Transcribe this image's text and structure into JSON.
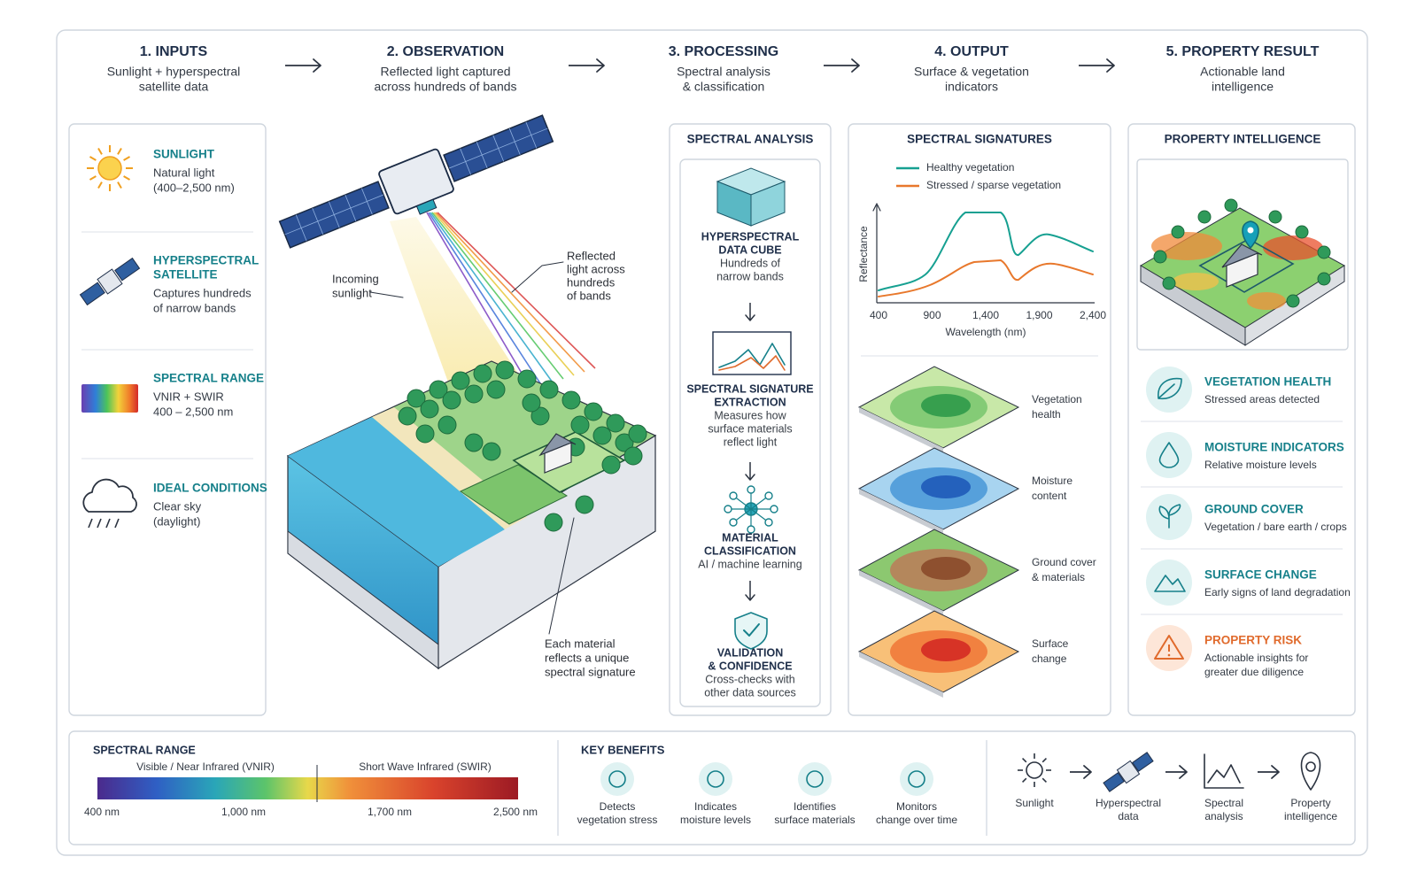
{
  "steps": [
    {
      "title": "1. INPUTS",
      "subtitle": [
        "Sunlight + hyperspectral",
        "satellite data"
      ]
    },
    {
      "title": "2. OBSERVATION",
      "subtitle": [
        "Reflected light captured",
        "across hundreds of bands"
      ]
    },
    {
      "title": "3. PROCESSING",
      "subtitle": [
        "Spectral analysis",
        "& classification"
      ]
    },
    {
      "title": "4. OUTPUT",
      "subtitle": [
        "Surface & vegetation",
        "indicators"
      ]
    },
    {
      "title": "5. PROPERTY RESULT",
      "subtitle": [
        "Actionable land",
        "intelligence"
      ]
    }
  ],
  "inputs": [
    {
      "title": [
        "SUNLIGHT"
      ],
      "desc": [
        "Natural light",
        "(400–2,500 nm)"
      ]
    },
    {
      "title": [
        "HYPERSPECTRAL",
        "SATELLITE"
      ],
      "desc": [
        "Captures hundreds",
        "of narrow bands"
      ]
    },
    {
      "title": [
        "SPECTRAL RANGE"
      ],
      "desc": [
        "VNIR + SWIR",
        "400 – 2,500 nm"
      ]
    },
    {
      "title": [
        "IDEAL CONDITIONS"
      ],
      "desc": [
        "Clear sky",
        "(daylight)"
      ]
    }
  ],
  "observation": {
    "incoming": [
      "Incoming",
      "sunlight"
    ],
    "reflected": [
      "Reflected",
      "light across",
      "hundreds",
      "of bands"
    ],
    "material": [
      "Each material",
      "reflects a unique",
      "spectral signature"
    ]
  },
  "processing": {
    "title": "SPECTRAL ANALYSIS",
    "steps": [
      {
        "title": [
          "HYPERSPECTRAL",
          "DATA CUBE"
        ],
        "desc": [
          "Hundreds of",
          "narrow bands"
        ]
      },
      {
        "title": [
          "SPECTRAL SIGNATURE",
          "EXTRACTION"
        ],
        "desc": [
          "Measures how",
          "surface materials",
          "reflect light"
        ]
      },
      {
        "title": [
          "MATERIAL",
          "CLASSIFICATION"
        ],
        "desc": [
          "AI / machine learning"
        ]
      },
      {
        "title": [
          "VALIDATION",
          "& CONFIDENCE"
        ],
        "desc": [
          "Cross-checks with",
          "other data sources"
        ]
      }
    ]
  },
  "output": {
    "title": "SPECTRAL SIGNATURES",
    "legend": [
      "Healthy vegetation",
      "Stressed / sparse vegetation"
    ],
    "y_label": "Reflectance",
    "x_label": "Wavelength (nm)",
    "x_ticks": [
      "400",
      "900",
      "1,400",
      "1,900",
      "2,400"
    ],
    "maps": [
      [
        "Vegetation",
        "health"
      ],
      [
        "Moisture",
        "content"
      ],
      [
        "Ground cover",
        "& materials"
      ],
      [
        "Surface",
        "change"
      ]
    ]
  },
  "property": {
    "title": "PROPERTY INTELLIGENCE",
    "items": [
      {
        "title": "VEGETATION HEALTH",
        "desc": [
          "Stressed areas detected"
        ]
      },
      {
        "title": "MOISTURE INDICATORS",
        "desc": [
          "Relative moisture levels"
        ]
      },
      {
        "title": "GROUND COVER",
        "desc": [
          "Vegetation / bare earth / crops"
        ]
      },
      {
        "title": "SURFACE CHANGE",
        "desc": [
          "Early signs of land degradation"
        ]
      },
      {
        "title": "PROPERTY RISK",
        "desc": [
          "Actionable insights for",
          "greater due diligence"
        ]
      }
    ]
  },
  "bottom": {
    "range_title": "SPECTRAL RANGE",
    "vnir": "Visible / Near Infrared (VNIR)",
    "swir": "Short Wave Infrared (SWIR)",
    "range_ticks": [
      "400 nm",
      "1,000 nm",
      "1,700 nm",
      "2,500 nm"
    ],
    "benefits_title": "KEY BENEFITS",
    "benefits": [
      [
        "Detects",
        "vegetation stress"
      ],
      [
        "Indicates",
        "moisture levels"
      ],
      [
        "Identifies",
        "surface materials"
      ],
      [
        "Monitors",
        "change over time"
      ]
    ],
    "flow": [
      [
        "Sunlight"
      ],
      [
        "Hyperspectral",
        "data"
      ],
      [
        "Spectral",
        "analysis"
      ],
      [
        "Property",
        "intelligence"
      ]
    ]
  }
}
